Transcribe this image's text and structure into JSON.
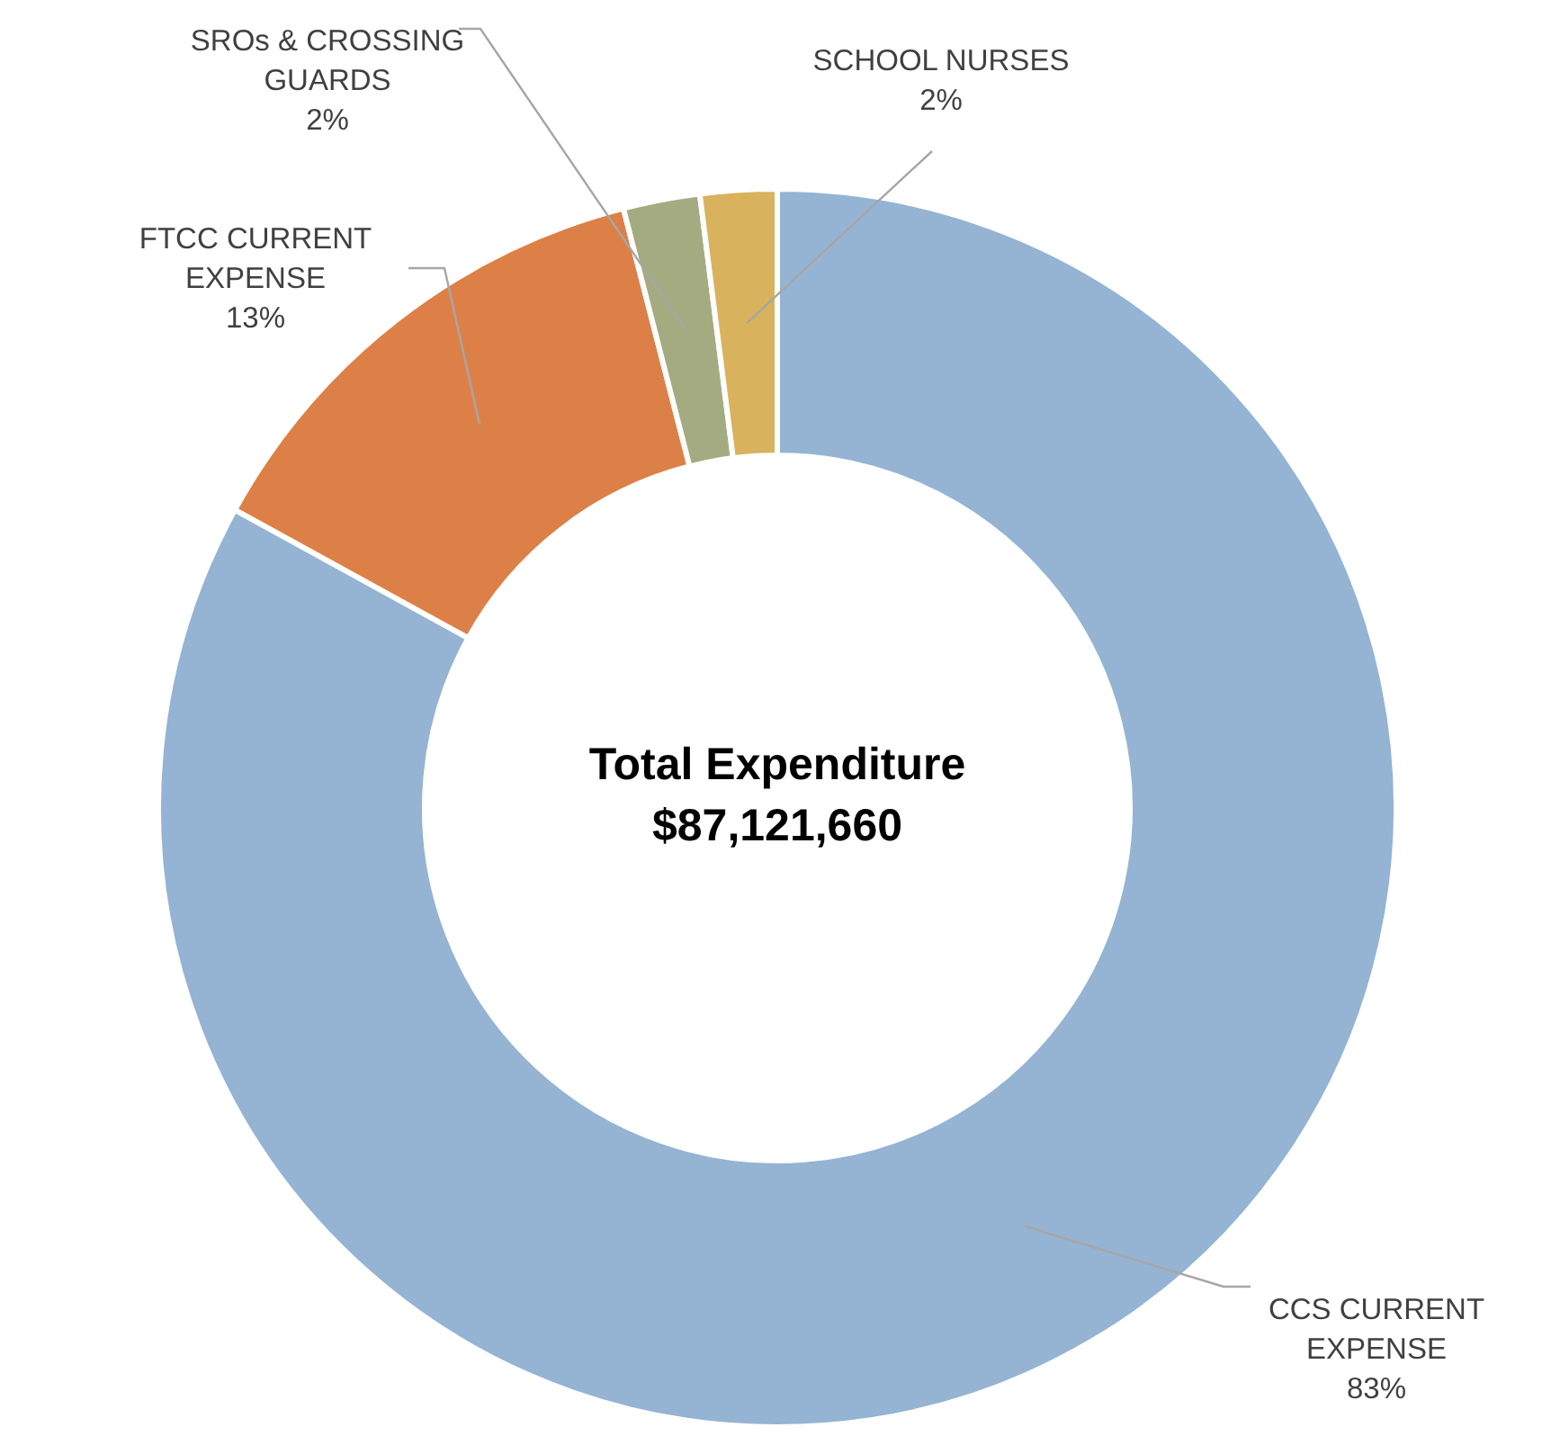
{
  "chart_data": {
    "type": "donut",
    "categories": [
      "CCS CURRENT EXPENSE",
      "FTCC CURRENT EXPENSE",
      "SROs & CROSSING GUARDS",
      "SCHOOL NURSES"
    ],
    "values": [
      83,
      13,
      2,
      2
    ],
    "value_labels": [
      "83%",
      "13%",
      "2%",
      "2%"
    ],
    "colors": [
      "#95b3d3",
      "#dd8047",
      "#a5ab81",
      "#d8b25c"
    ],
    "annotations": [
      "Total Expenditure",
      "$87,121,660"
    ]
  }
}
